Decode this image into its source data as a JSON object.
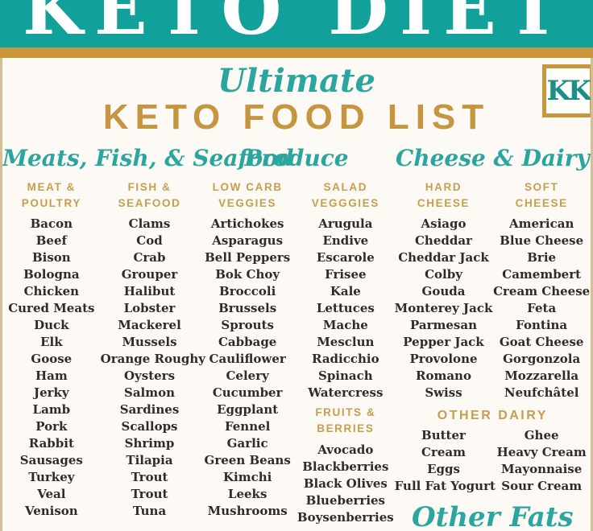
{
  "page": {
    "banner_title": "KETO DIET",
    "logo_text": "KK",
    "subtitle": "Ultimate",
    "title": "KETO FOOD LIST"
  },
  "colors": {
    "teal": "#12a19a",
    "gold_bar": "#c9963c",
    "gold_text": "#c79d4e",
    "title_gold": "#c6953f",
    "item_ink": "#2e2c2a",
    "background": "#fdfaf6"
  },
  "sections": [
    {
      "title": "Meats, Fish, & Seafood",
      "columns": [
        {
          "header": "MEAT &\nPOULTRY",
          "items": [
            "Bacon",
            "Beef",
            "Bison",
            "Bologna",
            "Chicken",
            "Cured Meats",
            "Duck",
            "Elk",
            "Goose",
            "Ham",
            "Jerky",
            "Lamb",
            "Pork",
            "Rabbit",
            "Sausages",
            "Turkey",
            "Veal",
            "Venison"
          ]
        },
        {
          "header": "FISH &\nSEAFOOD",
          "items": [
            "Clams",
            "Cod",
            "Crab",
            "Grouper",
            "Halibut",
            "Lobster",
            "Mackerel",
            "Mussels",
            "Orange Roughy",
            "Oysters",
            "Salmon",
            "Sardines",
            "Scallops",
            "Shrimp",
            "Tilapia",
            "Trout",
            "Trout",
            "Tuna"
          ]
        }
      ]
    },
    {
      "title": "Produce",
      "columns": [
        {
          "header": "LOW CARB\nVEGGIES",
          "items": [
            "Artichokes",
            "Asparagus",
            "Bell Peppers",
            "Bok Choy",
            "Broccoli",
            "Brussels",
            "Sprouts",
            "Cabbage",
            "Cauliflower",
            "Celery",
            "Cucumber",
            "Eggplant",
            "Fennel",
            "Garlic",
            "Green Beans",
            "Kimchi",
            "Leeks",
            "Mushrooms"
          ]
        },
        {
          "header": "SALAD\nVEGGGIES",
          "items": [
            "Arugula",
            "Endive",
            "Escarole",
            "Frisee",
            "Kale",
            "Lettuces",
            "Mache",
            "Mesclun",
            "Radicchio",
            "Spinach",
            "Watercress"
          ],
          "subheader": "FRUITS &\nBERRIES",
          "subitems": [
            "Avocado",
            "Blackberries",
            "Black Olives",
            "Blueberries",
            "Boysenberries"
          ]
        }
      ]
    },
    {
      "title": "Cheese & Dairy",
      "columns": [
        {
          "header": "HARD\nCHEESE",
          "items": [
            "Asiago",
            "Cheddar",
            "Cheddar Jack",
            "Colby",
            "Gouda",
            "Monterey Jack",
            "Parmesan",
            "Pepper Jack",
            "Provolone",
            "Romano",
            "Swiss"
          ]
        },
        {
          "header": "SOFT\nCHEESE",
          "items": [
            "American",
            "Blue Cheese",
            "Brie",
            "Camembert",
            "Cream Cheese",
            "Feta",
            "Fontina",
            "Goat Cheese",
            "Gorgonzola",
            "Mozzarella",
            "Neufchâtel"
          ]
        }
      ],
      "other_dairy": {
        "header": "OTHER DAIRY",
        "left_items": [
          "Butter",
          "Cream",
          "Eggs",
          "Full Fat Yogurt"
        ],
        "right_items": [
          "Ghee",
          "Heavy Cream",
          "Mayonnaise",
          "Sour Cream"
        ]
      },
      "footer_script": "Other Fats"
    }
  ]
}
